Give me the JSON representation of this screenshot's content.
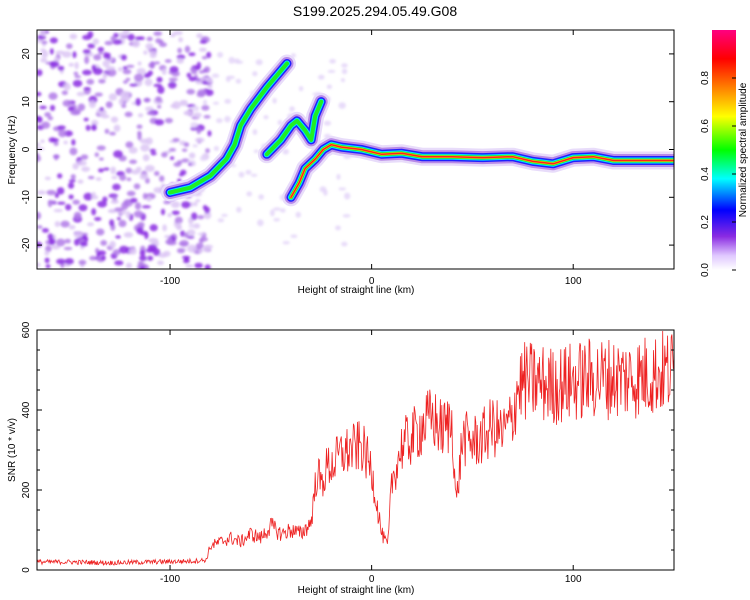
{
  "title": "S199.2025.294.05.49.G08",
  "chart_data": [
    {
      "type": "heatmap",
      "title": "",
      "xlabel": "Height of straight line (km)",
      "ylabel": "Frequency (Hz)",
      "xlim": [
        -166,
        150
      ],
      "ylim": [
        -25,
        25
      ],
      "x_ticks": [
        -100,
        0,
        100
      ],
      "y_ticks": [
        -20,
        -10,
        0,
        10,
        20
      ],
      "colorbar": {
        "label": "Normalized spectral amplitude",
        "range": [
          0,
          1
        ],
        "ticks": [
          0.0,
          0.2,
          0.4,
          0.6,
          0.8
        ],
        "colormap": [
          "#ffffff",
          "#8a2be2",
          "#0000ff",
          "#00ffff",
          "#00ff00",
          "#ffff00",
          "#ff8000",
          "#ff0000",
          "#ff0080"
        ]
      },
      "ridges": [
        {
          "points": [
            [
              -100,
              -9
            ],
            [
              -90,
              -8
            ],
            [
              -80,
              -5.5
            ],
            [
              -72,
              -2
            ],
            [
              -68,
              1
            ],
            [
              -65,
              5
            ],
            [
              -60,
              8.5
            ],
            [
              -52,
              13
            ],
            [
              -42,
              18
            ]
          ]
        },
        {
          "points": [
            [
              -52,
              -1
            ],
            [
              -45,
              2
            ],
            [
              -40,
              5
            ],
            [
              -37,
              6
            ],
            [
              -33,
              4
            ],
            [
              -30,
              2
            ],
            [
              -28,
              7
            ],
            [
              -25,
              10
            ]
          ]
        },
        {
          "points": [
            [
              -40,
              -10
            ],
            [
              -36,
              -7
            ],
            [
              -33,
              -4
            ],
            [
              -28,
              -2
            ],
            [
              -24,
              0
            ],
            [
              -20,
              1
            ],
            [
              -15,
              0.5
            ],
            [
              -5,
              0
            ],
            [
              5,
              -1
            ],
            [
              15,
              -0.8
            ],
            [
              25,
              -1.5
            ],
            [
              40,
              -1.5
            ],
            [
              55,
              -1.7
            ],
            [
              70,
              -1.5
            ],
            [
              80,
              -2.5
            ],
            [
              90,
              -3
            ],
            [
              100,
              -1.7
            ],
            [
              110,
              -1.5
            ],
            [
              120,
              -2.3
            ],
            [
              150,
              -2.3
            ]
          ]
        }
      ],
      "noise_region": [
        -166,
        -90
      ]
    },
    {
      "type": "line",
      "title": "",
      "xlabel": "Height of straight line (km)",
      "ylabel": "SNR (10 * v/v)",
      "xlim": [
        -166,
        150
      ],
      "ylim": [
        0,
        600
      ],
      "x_ticks": [
        -100,
        0,
        100
      ],
      "y_ticks": [
        0,
        200,
        400,
        600
      ],
      "series": [
        {
          "color": "#ee2222",
          "x": [
            -166,
            -150,
            -130,
            -110,
            -90,
            -82,
            -80,
            -75,
            -70,
            -65,
            -60,
            -55,
            -50,
            -45,
            -40,
            -35,
            -30,
            -27,
            -25,
            -22,
            -20,
            -15,
            -10,
            -5,
            0,
            5,
            8,
            10,
            15,
            20,
            25,
            30,
            35,
            40,
            42,
            45,
            50,
            55,
            60,
            65,
            70,
            72,
            75,
            80,
            90,
            100,
            110,
            120,
            130,
            140,
            150
          ],
          "y": [
            20,
            20,
            18,
            20,
            22,
            25,
            60,
            70,
            80,
            70,
            90,
            80,
            110,
            90,
            100,
            90,
            120,
            250,
            210,
            260,
            260,
            290,
            300,
            310,
            250,
            90,
            60,
            220,
            310,
            330,
            360,
            380,
            350,
            370,
            160,
            330,
            320,
            330,
            360,
            340,
            380,
            450,
            470,
            470,
            460,
            470,
            480,
            480,
            480,
            490,
            500
          ]
        }
      ]
    }
  ]
}
